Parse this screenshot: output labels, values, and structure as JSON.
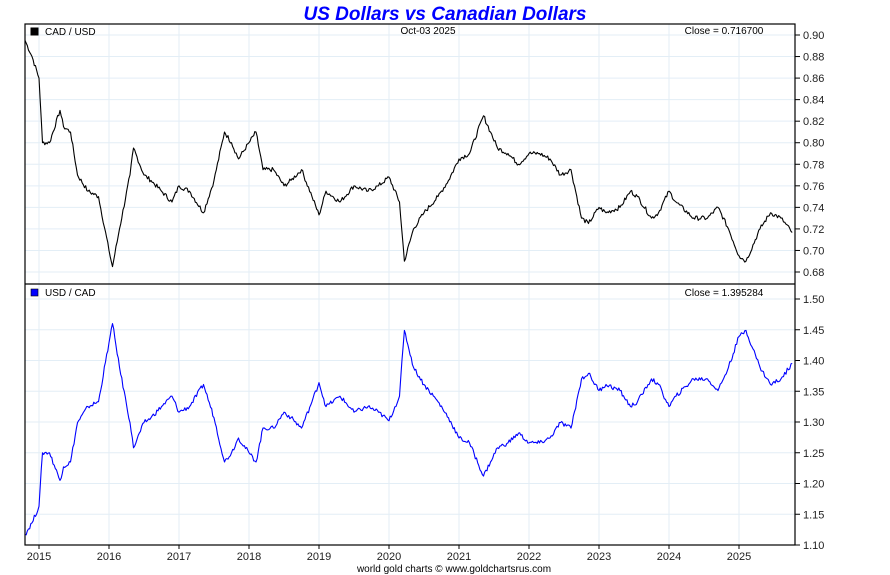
{
  "chart_data": {
    "type": "line",
    "title": "US Dollars vs Canadian Dollars",
    "date_label": "Oct-03  2025",
    "footer": "world gold charts © www.goldchartsrus.com",
    "x_range": [
      2014.8,
      2025.8
    ],
    "x_ticks": [
      "2015",
      "2016",
      "2017",
      "2018",
      "2019",
      "2020",
      "2021",
      "2022",
      "2023",
      "2024",
      "2025"
    ],
    "grid": true,
    "panels": [
      {
        "name": "CAD / USD",
        "legend": "CAD / USD",
        "legend_position": "top-left",
        "color": "#000000",
        "close_label": "Close = 0.716700",
        "ylim": [
          0.67,
          0.905
        ],
        "y_ticks": [
          "0.68",
          "0.70",
          "0.72",
          "0.74",
          "0.76",
          "0.78",
          "0.80",
          "0.82",
          "0.84",
          "0.86",
          "0.88",
          "0.90"
        ],
        "x": [
          2014.8,
          2014.9,
          2015.0,
          2015.05,
          2015.15,
          2015.3,
          2015.35,
          2015.45,
          2015.55,
          2015.7,
          2015.85,
          2016.0,
          2016.05,
          2016.15,
          2016.3,
          2016.35,
          2016.5,
          2016.6,
          2016.75,
          2016.9,
          2017.0,
          2017.15,
          2017.35,
          2017.5,
          2017.65,
          2017.75,
          2017.85,
          2018.0,
          2018.1,
          2018.2,
          2018.35,
          2018.5,
          2018.6,
          2018.75,
          2018.9,
          2019.0,
          2019.1,
          2019.3,
          2019.5,
          2019.7,
          2019.85,
          2020.0,
          2020.15,
          2020.22,
          2020.35,
          2020.5,
          2020.7,
          2020.85,
          2021.0,
          2021.15,
          2021.35,
          2021.45,
          2021.55,
          2021.7,
          2021.85,
          2022.0,
          2022.15,
          2022.3,
          2022.45,
          2022.6,
          2022.75,
          2022.85,
          2023.0,
          2023.1,
          2023.3,
          2023.45,
          2023.55,
          2023.75,
          2023.85,
          2024.0,
          2024.1,
          2024.35,
          2024.55,
          2024.7,
          2024.85,
          2025.0,
          2025.1,
          2025.3,
          2025.45,
          2025.6,
          2025.76
        ],
        "values": [
          0.895,
          0.88,
          0.86,
          0.8,
          0.8,
          0.83,
          0.815,
          0.81,
          0.77,
          0.755,
          0.75,
          0.7,
          0.685,
          0.72,
          0.77,
          0.795,
          0.77,
          0.765,
          0.755,
          0.745,
          0.76,
          0.755,
          0.735,
          0.765,
          0.81,
          0.8,
          0.785,
          0.8,
          0.81,
          0.775,
          0.775,
          0.76,
          0.765,
          0.775,
          0.75,
          0.733,
          0.755,
          0.745,
          0.76,
          0.755,
          0.76,
          0.768,
          0.745,
          0.69,
          0.72,
          0.735,
          0.75,
          0.765,
          0.785,
          0.79,
          0.825,
          0.81,
          0.795,
          0.79,
          0.78,
          0.79,
          0.79,
          0.785,
          0.77,
          0.775,
          0.73,
          0.725,
          0.74,
          0.735,
          0.74,
          0.755,
          0.75,
          0.73,
          0.735,
          0.755,
          0.745,
          0.73,
          0.73,
          0.74,
          0.72,
          0.695,
          0.69,
          0.72,
          0.735,
          0.73,
          0.7167
        ]
      },
      {
        "name": "USD / CAD",
        "legend": "USD / CAD",
        "legend_position": "top-left",
        "color": "#0000ff",
        "close_label": "Close = 1.395284",
        "ylim": [
          1.1,
          1.5
        ],
        "y_ticks": [
          "1.10",
          "1.15",
          "1.20",
          "1.25",
          "1.30",
          "1.35",
          "1.40",
          "1.45",
          "1.50"
        ],
        "x": [
          2014.8,
          2014.9,
          2015.0,
          2015.05,
          2015.15,
          2015.3,
          2015.35,
          2015.45,
          2015.55,
          2015.7,
          2015.85,
          2016.0,
          2016.05,
          2016.15,
          2016.3,
          2016.35,
          2016.5,
          2016.6,
          2016.75,
          2016.9,
          2017.0,
          2017.15,
          2017.35,
          2017.5,
          2017.65,
          2017.75,
          2017.85,
          2018.0,
          2018.1,
          2018.2,
          2018.35,
          2018.5,
          2018.6,
          2018.75,
          2018.9,
          2019.0,
          2019.1,
          2019.3,
          2019.5,
          2019.7,
          2019.85,
          2020.0,
          2020.15,
          2020.22,
          2020.35,
          2020.5,
          2020.7,
          2020.85,
          2021.0,
          2021.15,
          2021.35,
          2021.45,
          2021.55,
          2021.7,
          2021.85,
          2022.0,
          2022.15,
          2022.3,
          2022.45,
          2022.6,
          2022.75,
          2022.85,
          2023.0,
          2023.1,
          2023.3,
          2023.45,
          2023.55,
          2023.75,
          2023.85,
          2024.0,
          2024.1,
          2024.35,
          2024.55,
          2024.7,
          2024.85,
          2025.0,
          2025.1,
          2025.3,
          2025.45,
          2025.6,
          2025.76
        ],
        "values": [
          1.117,
          1.136,
          1.163,
          1.25,
          1.25,
          1.205,
          1.227,
          1.235,
          1.299,
          1.325,
          1.333,
          1.429,
          1.46,
          1.389,
          1.299,
          1.258,
          1.299,
          1.307,
          1.325,
          1.342,
          1.316,
          1.325,
          1.361,
          1.307,
          1.235,
          1.25,
          1.274,
          1.25,
          1.235,
          1.29,
          1.29,
          1.316,
          1.307,
          1.29,
          1.333,
          1.364,
          1.325,
          1.342,
          1.316,
          1.325,
          1.316,
          1.302,
          1.342,
          1.449,
          1.389,
          1.361,
          1.333,
          1.307,
          1.274,
          1.266,
          1.212,
          1.235,
          1.258,
          1.266,
          1.282,
          1.266,
          1.266,
          1.274,
          1.299,
          1.29,
          1.37,
          1.379,
          1.351,
          1.361,
          1.351,
          1.325,
          1.333,
          1.37,
          1.361,
          1.325,
          1.342,
          1.37,
          1.37,
          1.351,
          1.389,
          1.439,
          1.449,
          1.389,
          1.361,
          1.37,
          1.3953
        ]
      }
    ]
  }
}
